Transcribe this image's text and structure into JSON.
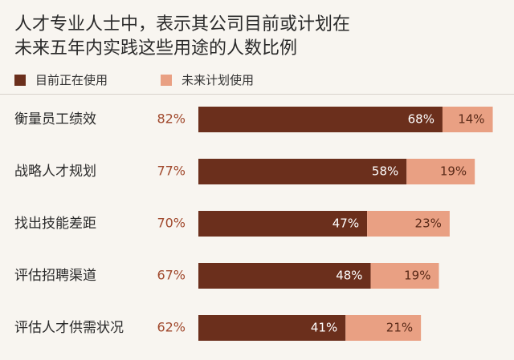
{
  "chart_data": {
    "type": "bar",
    "orientation": "horizontal",
    "stacked": true,
    "title_lines": [
      "人才专业人士中，表示其公司目前或计划在",
      "未来五年内实践这些用途的人数比例"
    ],
    "xlabel": "",
    "ylabel": "",
    "xlim": [
      0,
      100
    ],
    "grid": false,
    "legend_position": "top-left",
    "categories": [
      "衡量员工绩效",
      "战略人才规划",
      "找出技能差距",
      "评估招聘渠道",
      "评估人才供需状况"
    ],
    "totals": [
      "82%",
      "77%",
      "70%",
      "67%",
      "62%"
    ],
    "series": [
      {
        "name": "目前正在使用",
        "color": "#6b2f1c",
        "values": [
          68,
          58,
          47,
          48,
          41
        ],
        "labels": [
          "68%",
          "58%",
          "47%",
          "48%",
          "41%"
        ]
      },
      {
        "name": "未来计划使用",
        "color": "#e9a083",
        "values": [
          14,
          19,
          23,
          19,
          21
        ],
        "labels": [
          "14%",
          "19%",
          "23%",
          "19%",
          "21%"
        ]
      }
    ]
  }
}
